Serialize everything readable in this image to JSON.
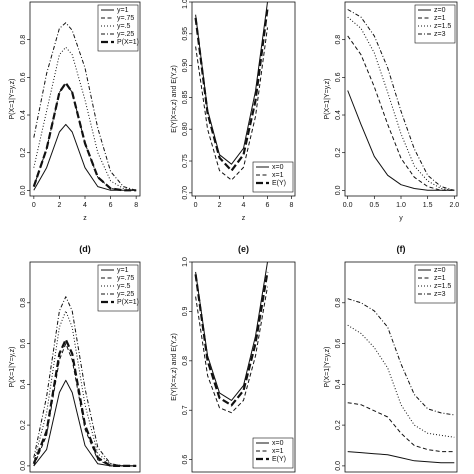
{
  "chart_data": [
    {
      "type": "line",
      "panel_label": "",
      "xlabel": "z",
      "ylabel": "P(X=1|Y=y,z)",
      "xlim": [
        -0.3,
        8.3
      ],
      "ylim": [
        -0.03,
        1.0
      ],
      "xticks": [
        0,
        2,
        4,
        6,
        8
      ],
      "yticks": [
        0.0,
        0.2,
        0.4,
        0.6,
        0.8
      ],
      "legend": "top-right",
      "series": [
        {
          "name": "y=1",
          "style": "solid",
          "width": 1,
          "x": [
            0,
            1,
            2,
            2.5,
            3,
            4,
            5,
            6,
            7,
            8
          ],
          "values": [
            0.0,
            0.12,
            0.31,
            0.35,
            0.31,
            0.12,
            0.02,
            0.0,
            0.0,
            0.0
          ]
        },
        {
          "name": "y=.75",
          "style": "dash",
          "width": 1,
          "x": [
            0,
            1,
            2,
            2.5,
            3,
            4,
            5,
            6,
            7,
            8
          ],
          "values": [
            0.02,
            0.22,
            0.52,
            0.57,
            0.52,
            0.25,
            0.07,
            0.01,
            0.0,
            0.0
          ]
        },
        {
          "name": "y=.5",
          "style": "dot",
          "width": 1,
          "x": [
            0,
            1,
            2,
            2.5,
            3,
            4,
            5,
            6,
            7,
            8
          ],
          "values": [
            0.12,
            0.42,
            0.72,
            0.76,
            0.72,
            0.48,
            0.2,
            0.05,
            0.01,
            0.0
          ]
        },
        {
          "name": "y=.25",
          "style": "dashdot",
          "width": 1,
          "x": [
            0,
            1,
            2,
            2.5,
            3,
            4,
            5,
            6,
            7,
            8
          ],
          "values": [
            0.28,
            0.62,
            0.86,
            0.89,
            0.85,
            0.65,
            0.33,
            0.1,
            0.02,
            0.0
          ]
        },
        {
          "name": "P(X=1)",
          "style": "longdash",
          "width": 2.2,
          "x": [
            0,
            1,
            2,
            2.5,
            3,
            4,
            5,
            6,
            7,
            8
          ],
          "values": [
            0.02,
            0.22,
            0.52,
            0.57,
            0.52,
            0.25,
            0.07,
            0.01,
            0.0,
            0.0
          ]
        }
      ]
    },
    {
      "type": "line",
      "panel_label": "",
      "xlabel": "z",
      "ylabel": "E(Y|X=x,z) and E(Y,z)",
      "xlim": [
        -0.3,
        8.3
      ],
      "ylim": [
        0.695,
        1.0
      ],
      "xticks": [
        0,
        2,
        4,
        6,
        8
      ],
      "yticks": [
        0.7,
        0.75,
        0.8,
        0.85,
        0.9,
        0.95,
        1.0
      ],
      "legend": "bottom-right",
      "series": [
        {
          "name": "x=0",
          "style": "solid",
          "width": 1,
          "x": [
            0,
            1,
            2,
            3,
            4,
            5,
            6
          ],
          "values": [
            0.98,
            0.83,
            0.76,
            0.745,
            0.77,
            0.86,
            1.0
          ]
        },
        {
          "name": "x=1",
          "style": "dash",
          "width": 1,
          "x": [
            0,
            1,
            2,
            3,
            4,
            5,
            6
          ],
          "values": [
            0.93,
            0.8,
            0.735,
            0.72,
            0.74,
            0.82,
            0.96
          ]
        },
        {
          "name": "E(Y)",
          "style": "longdash",
          "width": 2.2,
          "x": [
            0,
            1,
            2,
            3,
            4,
            5,
            6
          ],
          "values": [
            0.975,
            0.825,
            0.755,
            0.735,
            0.76,
            0.845,
            0.99
          ]
        }
      ]
    },
    {
      "type": "line",
      "panel_label": "",
      "xlabel": "y",
      "ylabel": "P(X=1|Y=y,z)",
      "xlim": [
        -0.05,
        2.05
      ],
      "ylim": [
        -0.03,
        1.0
      ],
      "xticks": [
        0.0,
        0.5,
        1.0,
        1.5,
        2.0
      ],
      "yticks": [
        0.0,
        0.2,
        0.4,
        0.6,
        0.8
      ],
      "legend": "top-right",
      "series": [
        {
          "name": "z=0",
          "style": "solid",
          "width": 1,
          "x": [
            0,
            0.25,
            0.5,
            0.75,
            1.0,
            1.25,
            1.5,
            1.75,
            2.0
          ],
          "values": [
            0.53,
            0.35,
            0.18,
            0.08,
            0.03,
            0.01,
            0.0,
            0.0,
            0.0
          ]
        },
        {
          "name": "z=1",
          "style": "dash",
          "width": 1,
          "x": [
            0,
            0.25,
            0.5,
            0.75,
            1.0,
            1.25,
            1.5,
            1.75,
            2.0
          ],
          "values": [
            0.82,
            0.72,
            0.55,
            0.35,
            0.17,
            0.07,
            0.02,
            0.0,
            0.0
          ]
        },
        {
          "name": "z=1.5",
          "style": "dot",
          "width": 1,
          "x": [
            0,
            0.25,
            0.5,
            0.75,
            1.0,
            1.25,
            1.5,
            1.75,
            2.0
          ],
          "values": [
            0.92,
            0.86,
            0.73,
            0.52,
            0.3,
            0.13,
            0.05,
            0.01,
            0.0
          ]
        },
        {
          "name": "z=3",
          "style": "dashdot",
          "width": 1,
          "x": [
            0,
            0.25,
            0.5,
            0.75,
            1.0,
            1.25,
            1.5,
            1.75,
            2.0
          ],
          "values": [
            0.96,
            0.92,
            0.82,
            0.65,
            0.42,
            0.22,
            0.08,
            0.02,
            0.0
          ]
        }
      ]
    },
    {
      "type": "line",
      "panel_label": "(d)",
      "xlabel": "",
      "ylabel": "P(X=1|Y=y,z)",
      "xlim": [
        -0.3,
        8.3
      ],
      "ylim": [
        -0.03,
        1.0
      ],
      "xticks": [],
      "yticks": [
        0.0,
        0.2,
        0.4,
        0.6,
        0.8
      ],
      "legend": "top-right",
      "series": [
        {
          "name": "y=1",
          "style": "solid",
          "width": 1,
          "x": [
            0,
            1,
            2,
            2.5,
            3,
            4,
            5,
            6,
            7,
            8
          ],
          "values": [
            0.0,
            0.08,
            0.36,
            0.42,
            0.36,
            0.1,
            0.01,
            0.0,
            0.0,
            0.0
          ]
        },
        {
          "name": "y=.75",
          "style": "dash",
          "width": 1,
          "x": [
            0,
            1,
            2,
            2.5,
            3,
            4,
            5,
            6,
            7,
            8
          ],
          "values": [
            0.0,
            0.15,
            0.52,
            0.6,
            0.52,
            0.18,
            0.03,
            0.0,
            0.0,
            0.0
          ]
        },
        {
          "name": "y=.5",
          "style": "dot",
          "width": 1,
          "x": [
            0,
            1,
            2,
            2.5,
            3,
            4,
            5,
            6,
            7,
            8
          ],
          "values": [
            0.02,
            0.26,
            0.68,
            0.76,
            0.68,
            0.3,
            0.06,
            0.01,
            0.0,
            0.0
          ]
        },
        {
          "name": "y=.25",
          "style": "dashdot",
          "width": 1,
          "x": [
            0,
            1,
            2,
            2.5,
            3,
            4,
            5,
            6,
            7,
            8
          ],
          "values": [
            0.04,
            0.34,
            0.76,
            0.83,
            0.76,
            0.38,
            0.09,
            0.01,
            0.0,
            0.0
          ]
        },
        {
          "name": "P(X=1)",
          "style": "longdash",
          "width": 2.2,
          "x": [
            0,
            1,
            2,
            2.5,
            3,
            4,
            5,
            6,
            7,
            8
          ],
          "values": [
            0.01,
            0.17,
            0.55,
            0.62,
            0.55,
            0.2,
            0.04,
            0.0,
            0.0,
            0.0
          ]
        }
      ]
    },
    {
      "type": "line",
      "panel_label": "(e)",
      "xlabel": "",
      "ylabel": "E(Y|X=x,z) and E(Y,z)",
      "xlim": [
        -0.3,
        8.3
      ],
      "ylim": [
        0.575,
        1.0
      ],
      "xticks": [],
      "yticks": [
        0.6,
        0.7,
        0.8,
        0.9,
        1.0
      ],
      "legend": "bottom-right",
      "series": [
        {
          "name": "x=0",
          "style": "solid",
          "width": 1,
          "x": [
            0,
            1,
            2,
            3,
            4,
            5,
            6
          ],
          "values": [
            0.98,
            0.81,
            0.735,
            0.72,
            0.75,
            0.85,
            1.0
          ]
        },
        {
          "name": "x=1",
          "style": "dash",
          "width": 1,
          "x": [
            0,
            1,
            2,
            3,
            4,
            5,
            6
          ],
          "values": [
            0.93,
            0.77,
            0.705,
            0.695,
            0.72,
            0.81,
            0.95
          ]
        },
        {
          "name": "E(Y)",
          "style": "longdash",
          "width": 2.2,
          "x": [
            0,
            1,
            2,
            3,
            4,
            5,
            6
          ],
          "values": [
            0.975,
            0.8,
            0.725,
            0.71,
            0.74,
            0.835,
            0.98
          ]
        }
      ]
    },
    {
      "type": "line",
      "panel_label": "(f)",
      "xlabel": "",
      "ylabel": "P(X=1|Y=y,z)",
      "xlim": [
        -0.05,
        2.05
      ],
      "ylim": [
        -0.03,
        1.0
      ],
      "xticks": [],
      "yticks": [
        0.0,
        0.2,
        0.4,
        0.6,
        0.8
      ],
      "legend": "top-right",
      "series": [
        {
          "name": "z=0",
          "style": "solid",
          "width": 1,
          "x": [
            0,
            0.25,
            0.5,
            0.75,
            1.0,
            1.25,
            1.5,
            1.75,
            2.0
          ],
          "values": [
            0.07,
            0.065,
            0.06,
            0.055,
            0.04,
            0.025,
            0.02,
            0.015,
            0.015
          ]
        },
        {
          "name": "z=1",
          "style": "dash",
          "width": 1,
          "x": [
            0,
            0.25,
            0.5,
            0.75,
            1.0,
            1.25,
            1.5,
            1.75,
            2.0
          ],
          "values": [
            0.31,
            0.3,
            0.27,
            0.24,
            0.16,
            0.1,
            0.08,
            0.07,
            0.07
          ]
        },
        {
          "name": "z=1.5",
          "style": "dot",
          "width": 1,
          "x": [
            0,
            0.25,
            0.5,
            0.75,
            1.0,
            1.25,
            1.5,
            1.75,
            2.0
          ],
          "values": [
            0.69,
            0.65,
            0.58,
            0.48,
            0.3,
            0.2,
            0.16,
            0.15,
            0.14
          ]
        },
        {
          "name": "z=3",
          "style": "dashdot",
          "width": 1,
          "x": [
            0,
            0.25,
            0.5,
            0.75,
            1.0,
            1.25,
            1.5,
            1.75,
            2.0
          ],
          "values": [
            0.82,
            0.8,
            0.76,
            0.68,
            0.5,
            0.35,
            0.28,
            0.26,
            0.25
          ]
        }
      ]
    }
  ]
}
